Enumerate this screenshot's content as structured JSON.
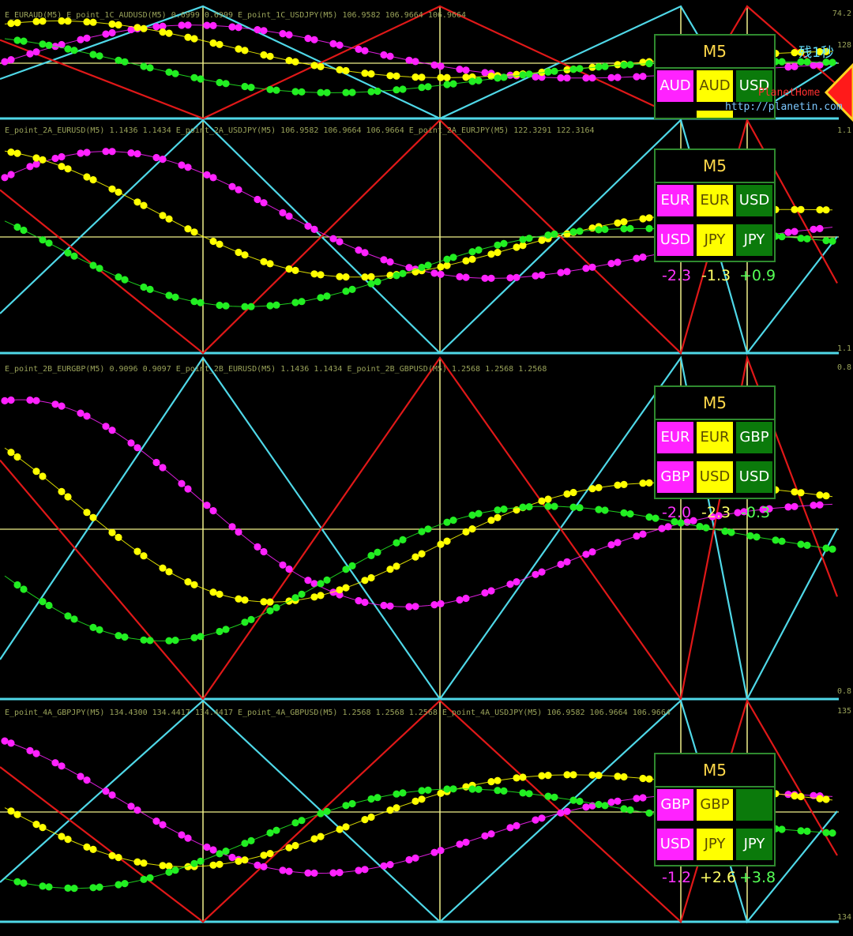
{
  "chart_data": [
    {
      "type": "line",
      "panel": "1C",
      "header": "E_EURAUD(M5)  E_point_1C_AUDUSD(M5) 0.6999 0.6999  E_point_1C_USDJPY(M5) 106.9582 106.9664 106.9664",
      "axis_top": "74.2",
      "axis_mid": "128",
      "timeframe": "M5",
      "grid": [
        {
          "a": "AUD",
          "b": "AUD",
          "c": "USD"
        }
      ],
      "scores": []
    },
    {
      "type": "line",
      "panel": "2A",
      "header": "E_point_2A_EURUSD(M5) 1.1436 1.1434  E_point_2A_USDJPY(M5) 106.9582 106.9664 106.9664  E_point_2A_EURJPY(M5) 122.3291 122.3164",
      "axis_top": "1.1",
      "axis_bottom": "1.1",
      "timeframe": "M5",
      "grid": [
        {
          "a": "EUR",
          "b": "EUR",
          "c": "USD"
        },
        {
          "a": "USD",
          "b": "JPY",
          "c": "JPY"
        }
      ],
      "scores": [
        "-2.3",
        "-1.3",
        "+0.9"
      ]
    },
    {
      "type": "line",
      "panel": "2B",
      "header": "E_point_2B_EURGBP(M5) 0.9096 0.9097  E_point_2B_EURUSD(M5) 1.1436 1.1434  E_point_2B_GBPUSD(M5) 1.2568 1.2568 1.2568",
      "axis_top": "0.8",
      "axis_bottom": "0.8",
      "timeframe": "M5",
      "grid": [
        {
          "a": "EUR",
          "b": "EUR",
          "c": "GBP"
        },
        {
          "a": "GBP",
          "b": "USD",
          "c": "USD"
        }
      ],
      "scores": [
        "-2.0",
        "-2.3",
        "-0.3"
      ]
    },
    {
      "type": "line",
      "panel": "4A",
      "header": "E_point_4A_GBPJPY(M5) 134.4300 134.4417 134.4417  E_point_4A_GBPUSD(M5) 1.2568 1.2568 1.2568  E_point_4A_USDJPY(M5) 106.9582 106.9664 106.9664",
      "axis_top": "135",
      "axis_bottom": "134",
      "timeframe": "M5",
      "grid": [
        {
          "a": "GBP",
          "b": "GBP",
          "c": ""
        },
        {
          "a": "USD",
          "b": "JPY",
          "c": "JPY"
        }
      ],
      "scores": [
        "-1.2",
        "+2.6",
        "+3.8"
      ]
    }
  ],
  "overlay": {
    "timer": "残1秒",
    "brand": "PlanetHome",
    "url": "http://planetin.com"
  },
  "colors": {
    "magenta": "#ff22ff",
    "yellow": "#ffff00",
    "green": "#22ee22",
    "cyan": "#4fd8e8",
    "red": "#e01818",
    "guide": "#f0f08a",
    "score_magenta": "#ff33ff",
    "score_yellow": "#ffff66",
    "score_green": "#55ff55"
  }
}
